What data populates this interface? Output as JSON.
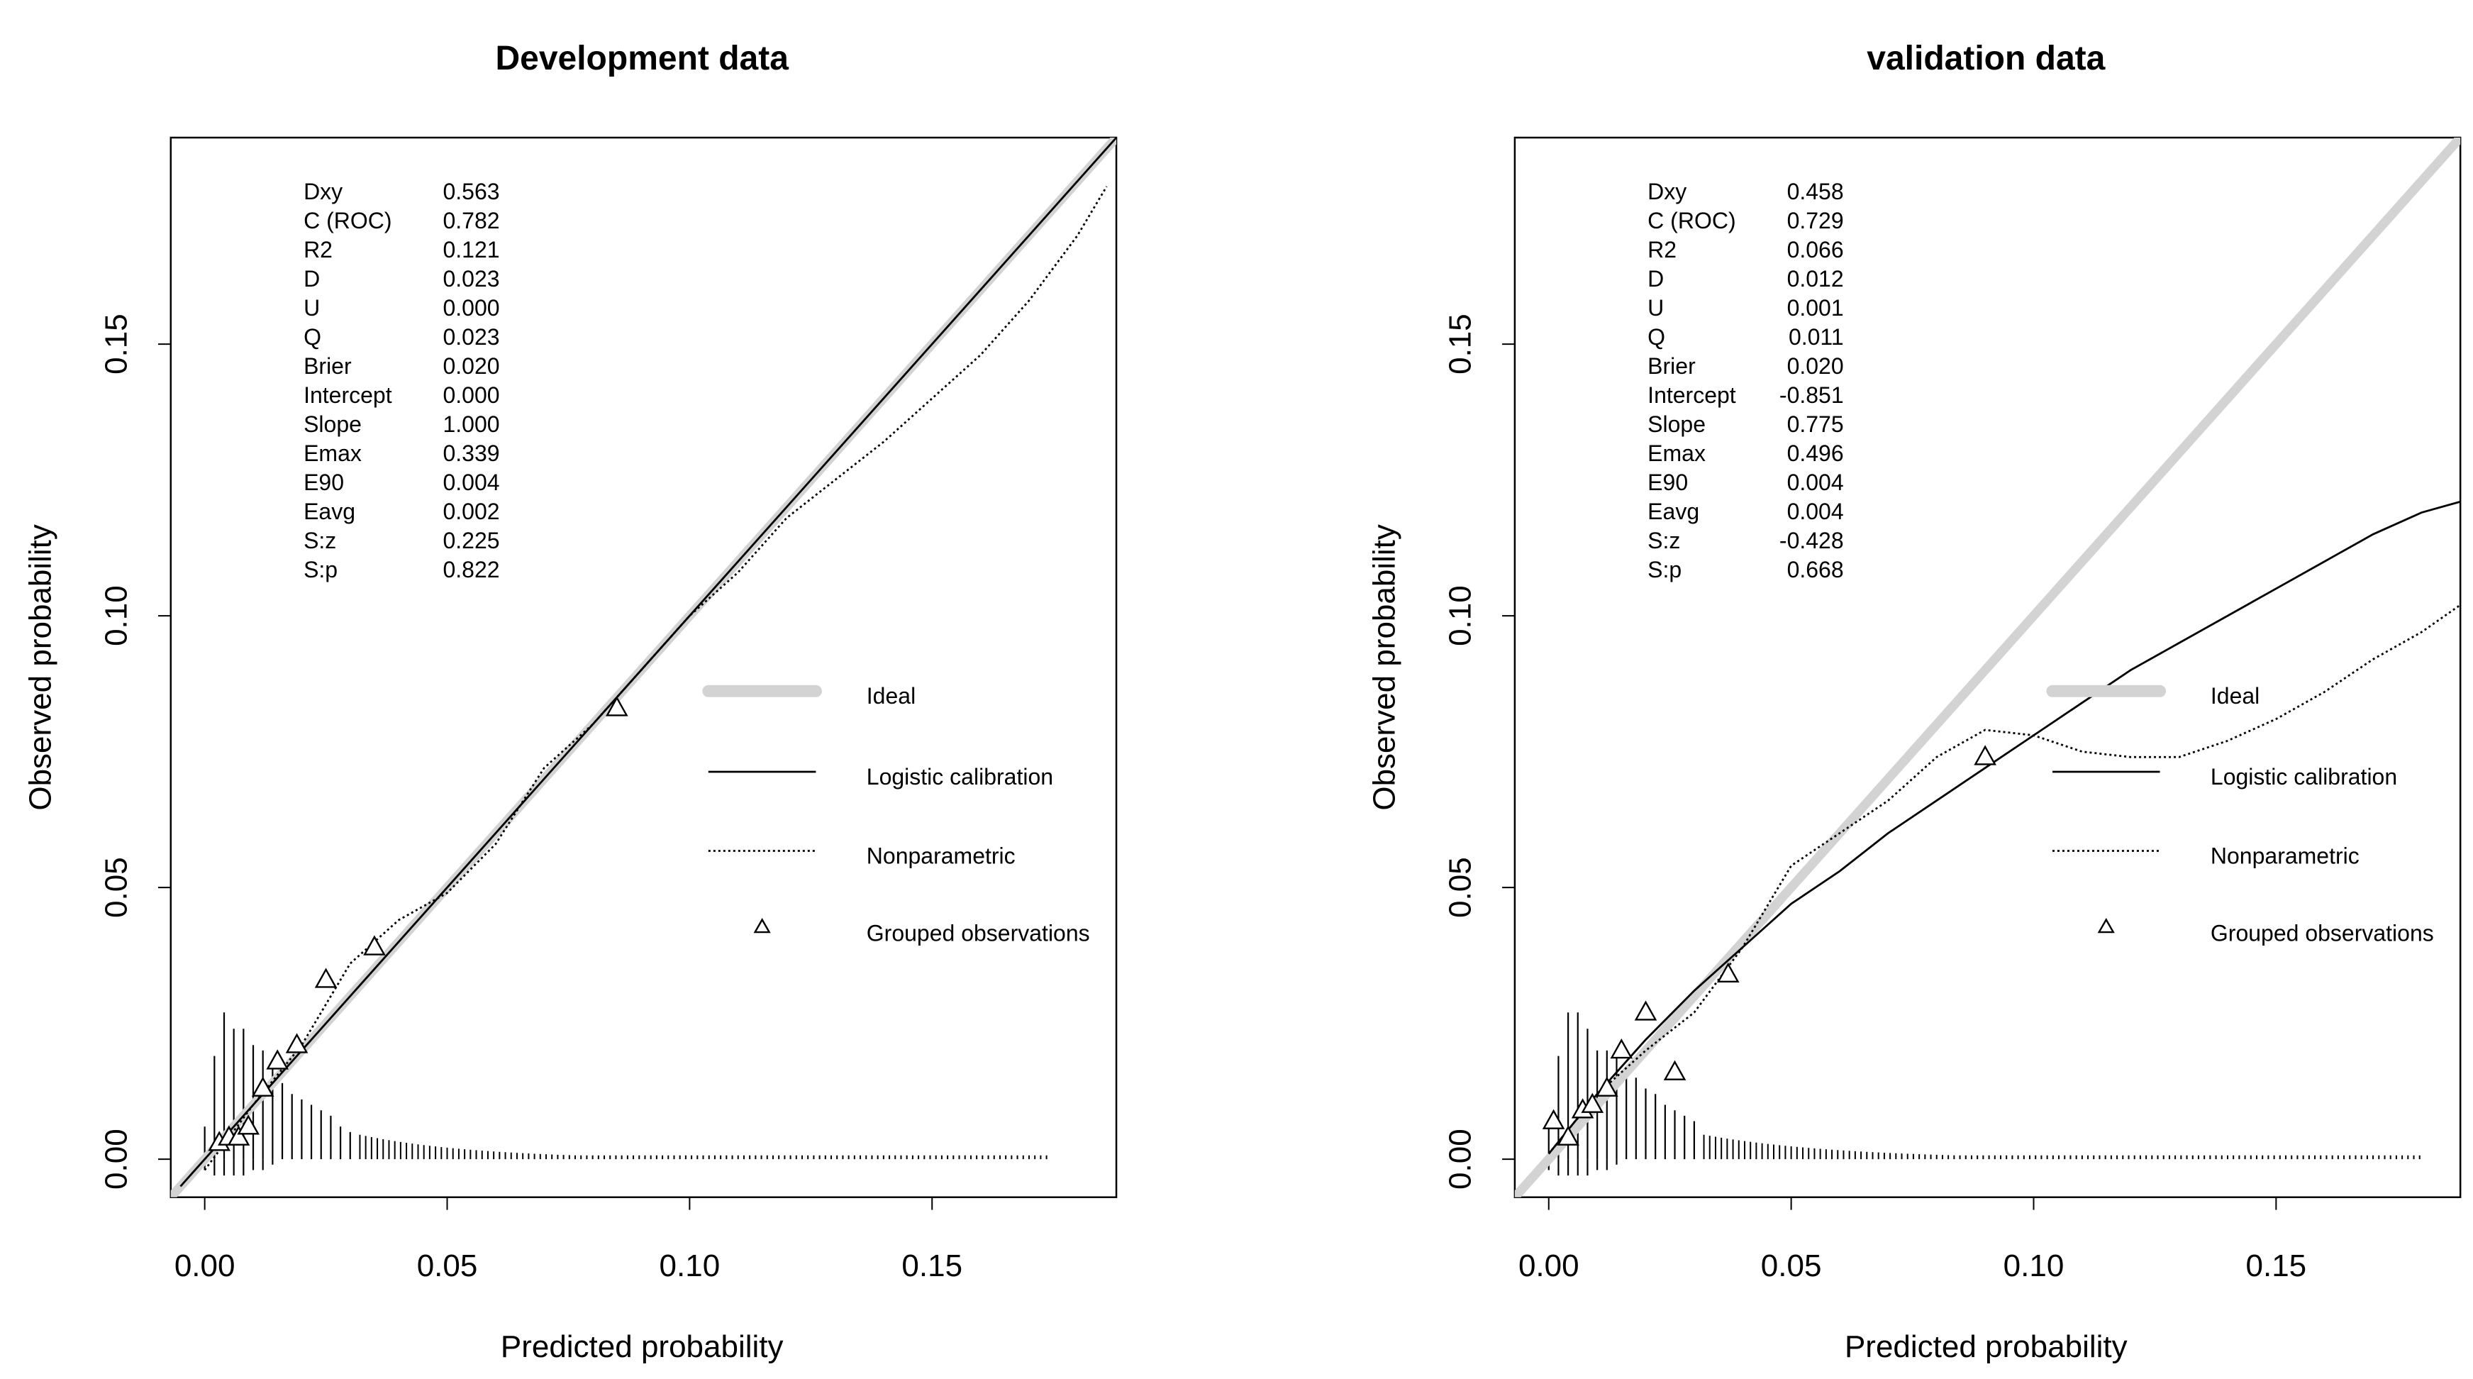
{
  "chart_data": [
    {
      "type": "line",
      "title": "Development data",
      "xlabel": "Predicted probability",
      "ylabel": "Observed probability",
      "xlim": [
        -0.007,
        0.188
      ],
      "ylim": [
        -0.007,
        0.188
      ],
      "xticks": [
        0.0,
        0.05,
        0.1,
        0.15
      ],
      "xtick_labels": [
        "0.00",
        "0.05",
        "0.10",
        "0.15"
      ],
      "yticks": [
        0.0,
        0.05,
        0.1,
        0.15
      ],
      "ytick_labels": [
        "0.00",
        "0.05",
        "0.10",
        "0.15"
      ],
      "stats": [
        {
          "name": "Dxy",
          "value": "0.563"
        },
        {
          "name": "C (ROC)",
          "value": "0.782"
        },
        {
          "name": "R2",
          "value": "0.121"
        },
        {
          "name": "D",
          "value": "0.023"
        },
        {
          "name": "U",
          "value": "0.000"
        },
        {
          "name": "Q",
          "value": "0.023"
        },
        {
          "name": "Brier",
          "value": "0.020"
        },
        {
          "name": "Intercept",
          "value": "0.000"
        },
        {
          "name": "Slope",
          "value": "1.000"
        },
        {
          "name": "Emax",
          "value": "0.339"
        },
        {
          "name": "E90",
          "value": "0.004"
        },
        {
          "name": "Eavg",
          "value": "0.002"
        },
        {
          "name": "S:z",
          "value": "0.225"
        },
        {
          "name": "S:p",
          "value": "0.822"
        }
      ],
      "legend_position": "right",
      "series": [
        {
          "name": "Ideal",
          "style": "ideal",
          "color": "#d3d3d3",
          "x": [
            -0.007,
            0.188
          ],
          "y": [
            -0.007,
            0.188
          ]
        },
        {
          "name": "Logistic calibration",
          "style": "solid",
          "color": "#000000",
          "x": [
            -0.005,
            0.188
          ],
          "y": [
            -0.005,
            0.188
          ]
        },
        {
          "name": "Nonparametric",
          "style": "dotted",
          "color": "#000000",
          "x": [
            0.0,
            0.01,
            0.02,
            0.03,
            0.04,
            0.05,
            0.06,
            0.07,
            0.08,
            0.09,
            0.1,
            0.11,
            0.12,
            0.13,
            0.14,
            0.15,
            0.16,
            0.17,
            0.18,
            0.186
          ],
          "y": [
            -0.002,
            0.01,
            0.021,
            0.036,
            0.044,
            0.049,
            0.058,
            0.072,
            0.08,
            0.09,
            0.1,
            0.108,
            0.118,
            0.125,
            0.132,
            0.14,
            0.148,
            0.158,
            0.17,
            0.179
          ]
        },
        {
          "name": "Grouped observations",
          "style": "triangles",
          "color": "#000000",
          "x": [
            0.003,
            0.005,
            0.007,
            0.009,
            0.012,
            0.015,
            0.019,
            0.025,
            0.035,
            0.085
          ],
          "y": [
            0.003,
            0.004,
            0.004,
            0.006,
            0.013,
            0.018,
            0.021,
            0.033,
            0.039,
            0.083
          ]
        }
      ],
      "histogram": {
        "above": {
          "x": [
            0.0,
            0.002,
            0.004,
            0.006,
            0.008,
            0.01,
            0.012,
            0.014,
            0.016,
            0.018,
            0.02,
            0.022,
            0.024,
            0.026,
            0.028,
            0.03
          ],
          "h": [
            0.006,
            0.019,
            0.027,
            0.024,
            0.024,
            0.021,
            0.02,
            0.018,
            0.014,
            0.012,
            0.011,
            0.01,
            0.009,
            0.008,
            0.006,
            0.005
          ]
        },
        "below": {
          "x": [
            0.0,
            0.002,
            0.004,
            0.006,
            0.008,
            0.01,
            0.012,
            0.014
          ],
          "h": [
            0.002,
            0.003,
            0.003,
            0.003,
            0.003,
            0.002,
            0.002,
            0.001
          ]
        },
        "tail_start": 0.032,
        "tail_end": 0.174,
        "tail_step": 0.0012,
        "tail_h0": 0.0045,
        "tail_decay": 0.024
      }
    },
    {
      "type": "line",
      "title": "validation data",
      "xlabel": "Predicted probability",
      "ylabel": "Observed probability",
      "xlim": [
        -0.007,
        0.188
      ],
      "ylim": [
        -0.007,
        0.188
      ],
      "xticks": [
        0.0,
        0.05,
        0.1,
        0.15
      ],
      "xtick_labels": [
        "0.00",
        "0.05",
        "0.10",
        "0.15"
      ],
      "yticks": [
        0.0,
        0.05,
        0.1,
        0.15
      ],
      "ytick_labels": [
        "0.00",
        "0.05",
        "0.10",
        "0.15"
      ],
      "stats": [
        {
          "name": "Dxy",
          "value": "0.458"
        },
        {
          "name": "C (ROC)",
          "value": "0.729"
        },
        {
          "name": "R2",
          "value": "0.066"
        },
        {
          "name": "D",
          "value": "0.012"
        },
        {
          "name": "U",
          "value": "0.001"
        },
        {
          "name": "Q",
          "value": "0.011"
        },
        {
          "name": "Brier",
          "value": "0.020"
        },
        {
          "name": "Intercept",
          "value": "-0.851"
        },
        {
          "name": "Slope",
          "value": "0.775"
        },
        {
          "name": "Emax",
          "value": "0.496"
        },
        {
          "name": "E90",
          "value": "0.004"
        },
        {
          "name": "Eavg",
          "value": "0.004"
        },
        {
          "name": "S:z",
          "value": "-0.428"
        },
        {
          "name": "S:p",
          "value": "0.668"
        }
      ],
      "legend_position": "right",
      "series": [
        {
          "name": "Ideal",
          "style": "ideal",
          "color": "#d3d3d3",
          "x": [
            -0.007,
            0.188
          ],
          "y": [
            -0.007,
            0.188
          ]
        },
        {
          "name": "Logistic calibration",
          "style": "solid",
          "color": "#000000",
          "x": [
            0.0,
            0.01,
            0.02,
            0.03,
            0.04,
            0.05,
            0.06,
            0.07,
            0.08,
            0.09,
            0.1,
            0.11,
            0.12,
            0.13,
            0.14,
            0.15,
            0.16,
            0.17,
            0.18,
            0.188
          ],
          "y": [
            0.001,
            0.012,
            0.022,
            0.031,
            0.039,
            0.047,
            0.053,
            0.06,
            0.066,
            0.072,
            0.078,
            0.084,
            0.09,
            0.095,
            0.1,
            0.105,
            0.11,
            0.115,
            0.119,
            0.121
          ]
        },
        {
          "name": "Nonparametric",
          "style": "dotted",
          "color": "#000000",
          "x": [
            0.0,
            0.01,
            0.02,
            0.03,
            0.04,
            0.05,
            0.06,
            0.07,
            0.08,
            0.09,
            0.1,
            0.11,
            0.12,
            0.13,
            0.14,
            0.15,
            0.16,
            0.17,
            0.18,
            0.188
          ],
          "y": [
            0.001,
            0.012,
            0.02,
            0.027,
            0.039,
            0.054,
            0.06,
            0.066,
            0.074,
            0.079,
            0.078,
            0.075,
            0.074,
            0.074,
            0.077,
            0.081,
            0.086,
            0.092,
            0.097,
            0.102
          ]
        },
        {
          "name": "Grouped observations",
          "style": "triangles",
          "color": "#000000",
          "x": [
            0.001,
            0.004,
            0.007,
            0.009,
            0.012,
            0.015,
            0.02,
            0.026,
            0.037,
            0.09
          ],
          "y": [
            0.007,
            0.004,
            0.009,
            0.01,
            0.013,
            0.02,
            0.027,
            0.016,
            0.034,
            0.074
          ]
        }
      ],
      "histogram": {
        "above": {
          "x": [
            0.0,
            0.002,
            0.004,
            0.006,
            0.008,
            0.01,
            0.012,
            0.014,
            0.016,
            0.018,
            0.02,
            0.022,
            0.024,
            0.026,
            0.028,
            0.03
          ],
          "h": [
            0.007,
            0.019,
            0.027,
            0.027,
            0.024,
            0.02,
            0.02,
            0.019,
            0.017,
            0.015,
            0.013,
            0.012,
            0.01,
            0.009,
            0.008,
            0.007
          ]
        },
        "below": {
          "x": [
            0.0,
            0.002,
            0.004,
            0.006,
            0.008,
            0.01,
            0.012,
            0.014
          ],
          "h": [
            0.002,
            0.003,
            0.003,
            0.003,
            0.003,
            0.002,
            0.002,
            0.001
          ]
        },
        "tail_start": 0.032,
        "tail_end": 0.18,
        "tail_step": 0.0012,
        "tail_h0": 0.0045,
        "tail_decay": 0.028
      }
    }
  ]
}
